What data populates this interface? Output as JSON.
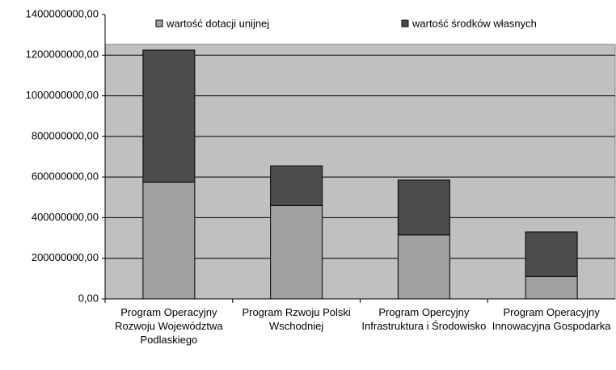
{
  "chart_data": {
    "type": "stacked_bar",
    "categories": [
      "Program Operacyjny Rozwoju Województwa Podlaskiego",
      "Program Rzwoju Polski Wschodniej",
      "Program Opercyjny Infrastruktura i Środowisko",
      "Program Operacyjny Innowacyjna Gospodarka"
    ],
    "series": [
      {
        "name": "wartość dotacji unijnej",
        "color": "#a0a0a0",
        "values": [
          575000000,
          460000000,
          315000000,
          110000000
        ]
      },
      {
        "name": "wartość środków własnych",
        "color": "#4d4d4d",
        "values": [
          650000000,
          195000000,
          270000000,
          220000000
        ]
      }
    ],
    "ylim": [
      0,
      1400000000
    ],
    "yticks": [
      {
        "value": 0,
        "label": "0,00"
      },
      {
        "value": 200000000,
        "label": "200000000,00"
      },
      {
        "value": 400000000,
        "label": "400000000,00"
      },
      {
        "value": 600000000,
        "label": "600000000,00"
      },
      {
        "value": 800000000,
        "label": "800000000,00"
      },
      {
        "value": 1000000000,
        "label": "1000000000,00"
      },
      {
        "value": 1200000000,
        "label": "1200000000,00"
      },
      {
        "value": 1400000000,
        "label": "1400000000,00"
      }
    ],
    "grid": true,
    "legend": "top"
  }
}
